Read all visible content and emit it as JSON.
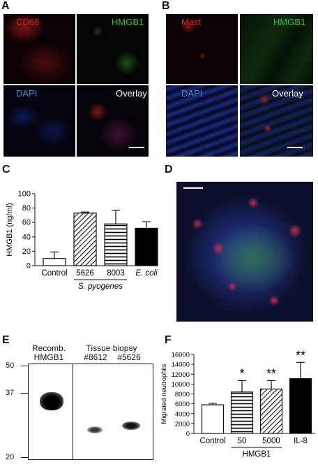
{
  "panels": {
    "A": {
      "letter": "A",
      "tiles": [
        "CD68",
        "HMGB1",
        "DAPI",
        "Overlay"
      ]
    },
    "B": {
      "letter": "B",
      "tiles": [
        "Mast",
        "HMGB1",
        "DAPI",
        "Overlay"
      ]
    },
    "C": {
      "letter": "C"
    },
    "D": {
      "letter": "D"
    },
    "E": {
      "letter": "E",
      "lane1": "Recomb.\nHMGB1",
      "biopsy_header": "Tissue biopsy",
      "biopsy1": "#8612",
      "biopsy2": "#5626",
      "markers": [
        "50",
        "37",
        "20"
      ]
    },
    "F": {
      "letter": "F"
    }
  },
  "colors": {
    "red": "#e0202a",
    "green": "#36c83a",
    "blue": "#3d8fe0",
    "white": "#ffffff"
  },
  "chart_data": [
    {
      "type": "bar",
      "ylabel": "HMGB1 (ng/ml)",
      "categories": [
        "Control",
        "5626",
        "8003",
        "E. coli"
      ],
      "values": [
        10,
        73,
        58,
        52
      ],
      "errors": [
        9,
        1.5,
        19,
        9
      ],
      "fills": [
        "white",
        "diagonal",
        "horizontal",
        "black"
      ],
      "group_label": "S. pyogenes",
      "ylim": [
        0,
        100
      ],
      "yticks": [
        0,
        20,
        40,
        60,
        80,
        100
      ]
    },
    {
      "type": "bar",
      "ylabel": "Migrated neutrophils",
      "categories": [
        "Control",
        "50",
        "5000",
        "IL-8"
      ],
      "values": [
        5800,
        8400,
        9000,
        11100
      ],
      "errors": [
        300,
        2300,
        1700,
        3300
      ],
      "fills": [
        "white",
        "horizontal",
        "diagonal",
        "black"
      ],
      "significance": [
        "",
        "*",
        "**",
        "**"
      ],
      "group_label": "HMGB1",
      "ylim": [
        0,
        16000
      ],
      "yticks": [
        0,
        2000,
        4000,
        6000,
        8000,
        10000,
        12000,
        14000,
        16000
      ]
    }
  ]
}
